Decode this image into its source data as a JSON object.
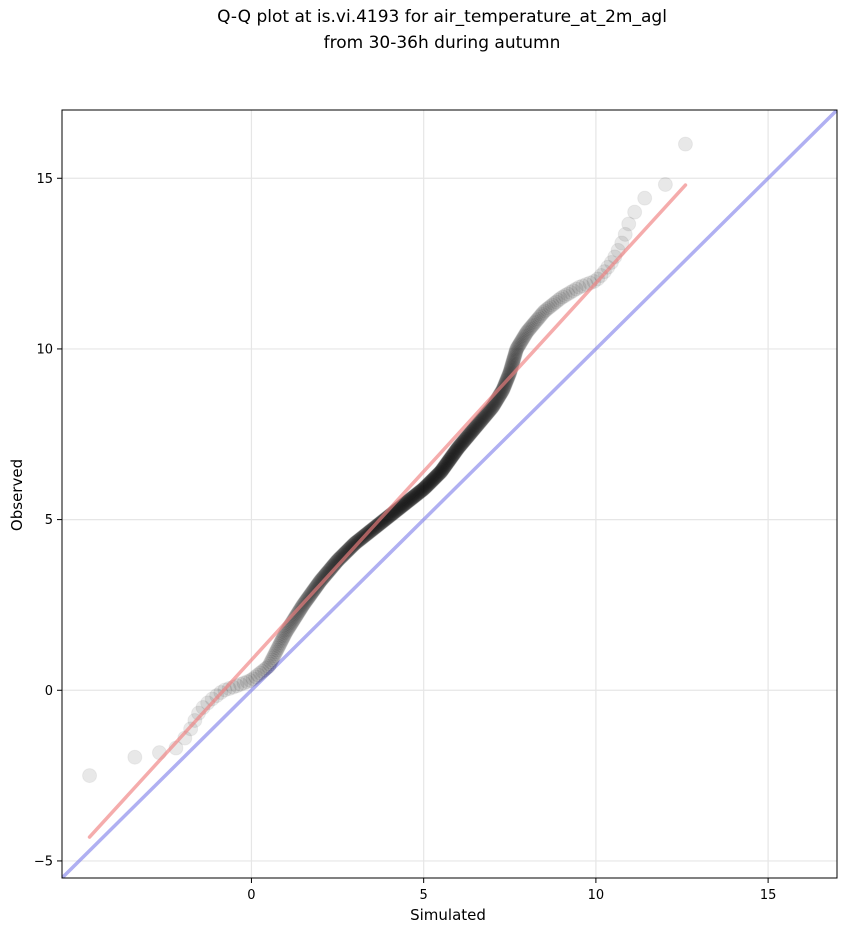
{
  "chart_data": {
    "type": "scatter",
    "title_line1": "Q-Q plot at is.vi.4193 for air_temperature_at_2m_agl",
    "title_line2": "from 30-36h during autumn",
    "xlabel": "Simulated",
    "ylabel": "Observed",
    "xlim": [
      -5.5,
      17
    ],
    "ylim": [
      -5.5,
      17
    ],
    "xticks": [
      0,
      5,
      10,
      15
    ],
    "yticks": [
      -5,
      0,
      5,
      10,
      15
    ],
    "xtick_labels": [
      "0",
      "5",
      "10",
      "15"
    ],
    "ytick_labels": [
      "−5",
      "0",
      "5",
      "10",
      "15"
    ],
    "grid": true,
    "colors": {
      "points": "#000000",
      "fit_line": "#f08080",
      "identity_line": "#7b7bea",
      "grid": "#e6e6e6"
    },
    "identity_line": {
      "x": [
        -5.5,
        17
      ],
      "y": [
        -5.5,
        17
      ]
    },
    "fit_line": {
      "x": [
        -4.7,
        12.6
      ],
      "y": [
        -4.3,
        14.8
      ]
    },
    "quantile_curve": {
      "x": [
        -4.7,
        -4.5,
        -4.3,
        -4.0,
        -3.5,
        -3.2,
        -2.8,
        -2.5,
        -2.2,
        -2.0,
        -1.8,
        -1.5,
        -1.2,
        -0.8,
        -0.5,
        0.0,
        0.5,
        1.0,
        1.5,
        2.0,
        2.5,
        3.0,
        3.5,
        4.0,
        4.5,
        5.0,
        5.5,
        6.0,
        6.5,
        7.0,
        7.3,
        7.5,
        7.7,
        8.0,
        8.5,
        9.0,
        9.5,
        10.0,
        10.2,
        10.5,
        10.8,
        11.0,
        11.3,
        11.6,
        12.0,
        12.3,
        12.6,
        12.6
      ],
      "y": [
        -2.5,
        -2.3,
        -2.2,
        -2.1,
        -2.0,
        -1.9,
        -1.85,
        -1.8,
        -1.7,
        -1.5,
        -1.2,
        -0.6,
        -0.3,
        0.0,
        0.1,
        0.3,
        0.7,
        1.7,
        2.5,
        3.2,
        3.8,
        4.3,
        4.7,
        5.1,
        5.5,
        5.9,
        6.4,
        7.1,
        7.7,
        8.3,
        8.8,
        9.3,
        10.0,
        10.5,
        11.1,
        11.5,
        11.8,
        12.0,
        12.2,
        12.6,
        13.2,
        13.8,
        14.3,
        14.6,
        14.8,
        15.1,
        15.3,
        16.0
      ]
    },
    "n_points": 520
  }
}
